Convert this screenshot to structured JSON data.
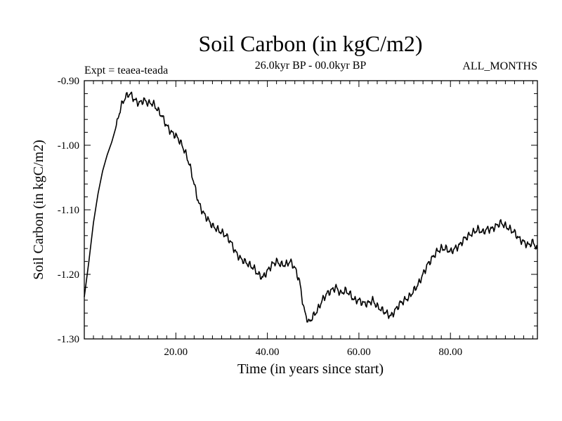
{
  "chart_data": {
    "type": "line",
    "title": "Soil Carbon (in kgC/m2)",
    "subtitle": "26.0kyr BP - 00.0kyr BP",
    "left_label": "Expt = teaea-teada",
    "right_label": "ALL_MONTHS",
    "xlabel": "Time (in years since start)",
    "ylabel": "Soil Carbon (in kgC/m2)",
    "xlim": [
      0,
      99
    ],
    "ylim": [
      -1.3,
      -0.9
    ],
    "xticks": [
      20,
      40,
      60,
      80
    ],
    "xtick_labels": [
      "20.00",
      "40.00",
      "60.00",
      "80.00"
    ],
    "yticks": [
      -0.9,
      -1.0,
      -1.1,
      -1.2,
      -1.3
    ],
    "ytick_labels": [
      "-0.90",
      "-1.00",
      "-1.10",
      "-1.20",
      "-1.30"
    ],
    "series": [
      {
        "name": "Soil Carbon",
        "x": [
          0,
          1,
          2,
          3,
          4,
          5,
          6,
          7,
          8,
          9,
          10,
          11,
          12,
          13,
          14,
          15,
          16,
          17,
          18,
          19,
          20,
          21,
          22,
          23,
          24,
          25,
          26,
          27,
          28,
          29,
          30,
          31,
          32,
          33,
          34,
          35,
          36,
          37,
          38,
          39,
          40,
          41,
          42,
          43,
          44,
          45,
          46,
          47,
          48,
          49,
          50,
          51,
          52,
          53,
          54,
          55,
          56,
          57,
          58,
          59,
          60,
          61,
          62,
          63,
          64,
          65,
          66,
          67,
          68,
          69,
          70,
          71,
          72,
          73,
          74,
          75,
          76,
          77,
          78,
          79,
          80,
          81,
          82,
          83,
          84,
          85,
          86,
          87,
          88,
          89,
          90,
          91,
          92,
          93,
          94,
          95,
          96,
          97,
          98,
          99
        ],
        "values": [
          -1.235,
          -1.18,
          -1.12,
          -1.075,
          -1.04,
          -1.015,
          -0.995,
          -0.97,
          -0.94,
          -0.925,
          -0.92,
          -0.93,
          -0.935,
          -0.93,
          -0.935,
          -0.935,
          -0.945,
          -0.955,
          -0.97,
          -0.98,
          -0.985,
          -0.995,
          -1.01,
          -1.03,
          -1.06,
          -1.09,
          -1.105,
          -1.115,
          -1.125,
          -1.13,
          -1.135,
          -1.14,
          -1.15,
          -1.165,
          -1.175,
          -1.18,
          -1.185,
          -1.19,
          -1.2,
          -1.205,
          -1.195,
          -1.185,
          -1.18,
          -1.185,
          -1.185,
          -1.18,
          -1.19,
          -1.21,
          -1.255,
          -1.275,
          -1.265,
          -1.255,
          -1.24,
          -1.23,
          -1.225,
          -1.22,
          -1.23,
          -1.225,
          -1.23,
          -1.24,
          -1.24,
          -1.245,
          -1.245,
          -1.24,
          -1.25,
          -1.255,
          -1.26,
          -1.265,
          -1.255,
          -1.245,
          -1.24,
          -1.235,
          -1.225,
          -1.215,
          -1.2,
          -1.185,
          -1.175,
          -1.165,
          -1.16,
          -1.16,
          -1.165,
          -1.16,
          -1.155,
          -1.145,
          -1.14,
          -1.135,
          -1.13,
          -1.135,
          -1.13,
          -1.13,
          -1.125,
          -1.12,
          -1.125,
          -1.13,
          -1.135,
          -1.145,
          -1.15,
          -1.155,
          -1.15,
          -1.16
        ]
      }
    ]
  }
}
